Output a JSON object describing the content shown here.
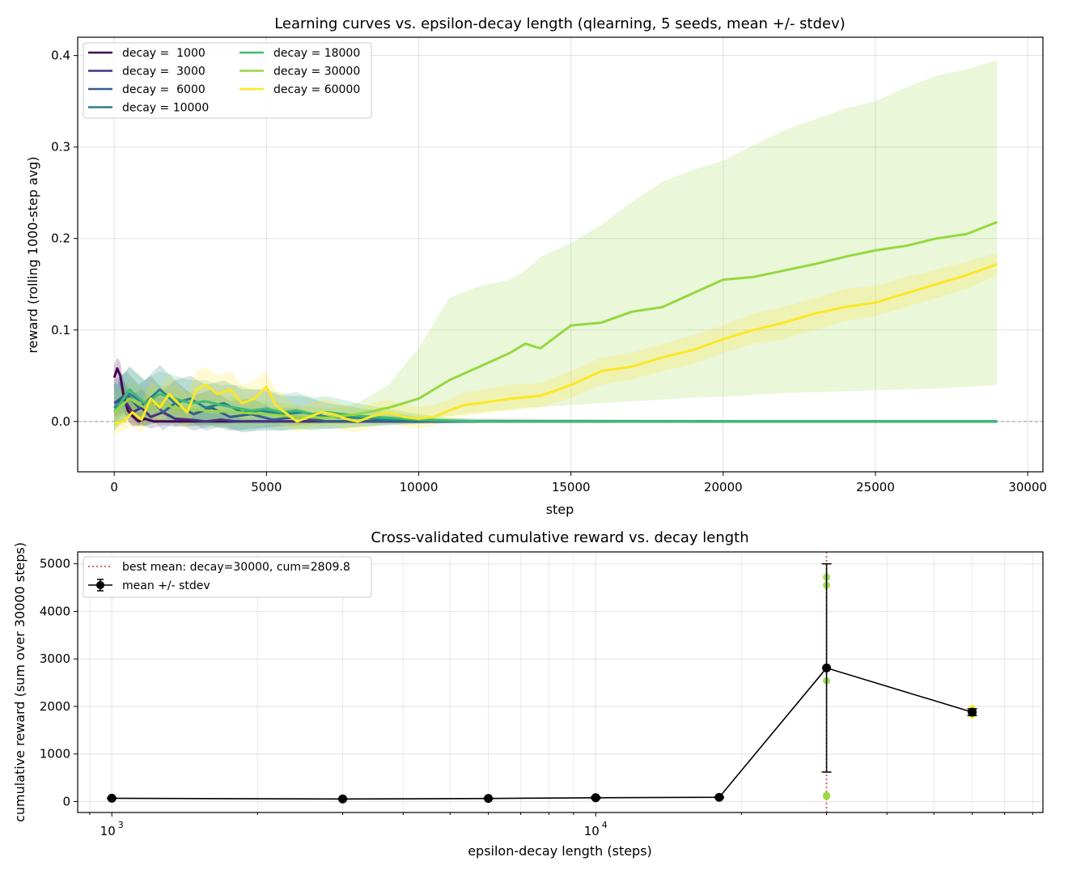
{
  "chart_data": [
    {
      "type": "line",
      "title": "Learning curves vs. epsilon-decay length (qlearning, 5 seeds, mean +/- stdev)",
      "xlabel": "step",
      "ylabel": "reward (rolling 1000-step avg)",
      "xlim": [
        -1200,
        30500
      ],
      "ylim": [
        -0.055,
        0.42
      ],
      "xticks": [
        0,
        5000,
        10000,
        15000,
        20000,
        25000,
        30000
      ],
      "xtick_labels": [
        "0",
        "5000",
        "10000",
        "15000",
        "20000",
        "25000",
        "30000"
      ],
      "yticks": [
        0.0,
        0.1,
        0.2,
        0.3,
        0.4
      ],
      "ytick_labels": [
        "0.0",
        "0.1",
        "0.2",
        "0.3",
        "0.4"
      ],
      "grid": true,
      "legend_position": "top-left",
      "zero_line": 0.0,
      "series": [
        {
          "name": "decay =  1000",
          "color": "#440154",
          "x": [
            0,
            100,
            200,
            300,
            450,
            600,
            800,
            1000,
            1300,
            2000,
            5000,
            29000
          ],
          "y": [
            0.048,
            0.058,
            0.05,
            0.03,
            0.012,
            0.006,
            0.0,
            0.003,
            0.0,
            0.0,
            0.0,
            0.0
          ],
          "band_lo": [
            0.035,
            0.045,
            0.035,
            0.015,
            0.0,
            -0.005,
            -0.005,
            -0.005,
            -0.002,
            0.0,
            0.0,
            0.0
          ],
          "band_hi": [
            0.062,
            0.07,
            0.065,
            0.045,
            0.028,
            0.02,
            0.01,
            0.012,
            0.004,
            0.0,
            0.0,
            0.0
          ]
        },
        {
          "name": "decay =  3000",
          "color": "#46327e",
          "x": [
            0,
            300,
            600,
            900,
            1200,
            1600,
            2000,
            2500,
            3000,
            3500,
            4000,
            5000,
            29000
          ],
          "y": [
            0.02,
            0.025,
            0.01,
            0.015,
            0.005,
            0.01,
            0.003,
            0.002,
            0.0,
            0.002,
            0.0,
            0.0,
            0.0
          ],
          "band_lo": [
            0.005,
            0.01,
            -0.005,
            -0.003,
            -0.008,
            -0.004,
            -0.006,
            -0.005,
            -0.004,
            -0.003,
            -0.002,
            0.0,
            0.0
          ],
          "band_hi": [
            0.04,
            0.045,
            0.03,
            0.035,
            0.025,
            0.028,
            0.015,
            0.012,
            0.01,
            0.008,
            0.005,
            0.0,
            0.0
          ]
        },
        {
          "name": "decay =  6000",
          "color": "#365c8d",
          "x": [
            0,
            400,
            800,
            1200,
            1600,
            2000,
            2600,
            3200,
            3800,
            4500,
            5200,
            6000,
            7000,
            29000
          ],
          "y": [
            0.02,
            0.03,
            0.015,
            0.025,
            0.01,
            0.02,
            0.008,
            0.015,
            0.005,
            0.008,
            0.002,
            0.005,
            0.0,
            0.0
          ],
          "band_lo": [
            0.0,
            0.01,
            -0.005,
            0.005,
            -0.01,
            0.0,
            -0.01,
            -0.005,
            -0.01,
            -0.008,
            -0.006,
            -0.004,
            -0.002,
            0.0
          ],
          "band_hi": [
            0.045,
            0.055,
            0.04,
            0.05,
            0.035,
            0.045,
            0.028,
            0.035,
            0.022,
            0.025,
            0.015,
            0.015,
            0.004,
            0.0
          ]
        },
        {
          "name": "decay = 10000",
          "color": "#277f8e",
          "x": [
            0,
            500,
            1000,
            1500,
            2000,
            2500,
            3000,
            3600,
            4200,
            4800,
            5500,
            6200,
            7000,
            8000,
            9000,
            10000,
            11000,
            29000
          ],
          "y": [
            0.015,
            0.03,
            0.02,
            0.035,
            0.02,
            0.025,
            0.015,
            0.02,
            0.01,
            0.012,
            0.008,
            0.01,
            0.005,
            0.004,
            0.002,
            0.001,
            0.0,
            0.0
          ],
          "band_lo": [
            -0.005,
            0.005,
            -0.005,
            0.01,
            -0.005,
            0.0,
            -0.01,
            -0.005,
            -0.012,
            -0.01,
            -0.01,
            -0.008,
            -0.008,
            -0.006,
            -0.004,
            -0.002,
            -0.001,
            0.0
          ],
          "band_hi": [
            0.04,
            0.06,
            0.045,
            0.062,
            0.045,
            0.05,
            0.04,
            0.045,
            0.035,
            0.035,
            0.028,
            0.028,
            0.02,
            0.015,
            0.01,
            0.005,
            0.002,
            0.0
          ]
        },
        {
          "name": "decay = 18000",
          "color": "#3fbc73",
          "x": [
            0,
            500,
            1000,
            1500,
            2000,
            2500,
            3000,
            3500,
            4000,
            4500,
            5000,
            5500,
            6000,
            6500,
            7000,
            7500,
            8000,
            9000,
            10000,
            11000,
            12000,
            29000
          ],
          "y": [
            0.01,
            0.035,
            0.02,
            0.03,
            0.025,
            0.02,
            0.022,
            0.018,
            0.015,
            0.012,
            0.014,
            0.01,
            0.012,
            0.008,
            0.01,
            0.008,
            0.006,
            0.004,
            0.002,
            0.001,
            0.0,
            0.0
          ],
          "band_lo": [
            -0.01,
            0.01,
            -0.005,
            0.005,
            0.0,
            -0.005,
            -0.003,
            -0.006,
            -0.01,
            -0.01,
            -0.008,
            -0.01,
            -0.008,
            -0.01,
            -0.008,
            -0.008,
            -0.006,
            -0.004,
            -0.003,
            -0.002,
            -0.001,
            0.0
          ],
          "band_hi": [
            0.035,
            0.06,
            0.045,
            0.055,
            0.05,
            0.045,
            0.045,
            0.04,
            0.04,
            0.035,
            0.035,
            0.03,
            0.032,
            0.026,
            0.028,
            0.024,
            0.02,
            0.014,
            0.008,
            0.004,
            0.002,
            0.0
          ]
        },
        {
          "name": "decay = 30000",
          "color": "#95d840",
          "x": [
            0,
            500,
            1000,
            1500,
            2000,
            3000,
            4000,
            5000,
            6000,
            7000,
            8000,
            9000,
            10000,
            11000,
            12000,
            13000,
            13500,
            14000,
            15000,
            16000,
            17000,
            18000,
            19000,
            20000,
            21000,
            22000,
            23000,
            24000,
            25000,
            26000,
            27000,
            28000,
            29000
          ],
          "y": [
            0.01,
            0.025,
            0.015,
            0.02,
            0.015,
            0.012,
            0.01,
            0.008,
            0.005,
            0.004,
            0.008,
            0.015,
            0.025,
            0.045,
            0.06,
            0.075,
            0.085,
            0.08,
            0.105,
            0.108,
            0.12,
            0.125,
            0.14,
            0.155,
            0.158,
            0.165,
            0.172,
            0.18,
            0.187,
            0.192,
            0.2,
            0.205,
            0.218
          ],
          "band_lo": [
            -0.01,
            0.005,
            -0.005,
            0.0,
            -0.005,
            -0.005,
            -0.006,
            -0.006,
            -0.006,
            -0.005,
            -0.003,
            0.0,
            0.003,
            0.006,
            0.01,
            0.013,
            0.015,
            0.016,
            0.018,
            0.02,
            0.022,
            0.024,
            0.026,
            0.027,
            0.029,
            0.031,
            0.032,
            0.033,
            0.034,
            0.035,
            0.036,
            0.038,
            0.04
          ],
          "band_hi": [
            0.03,
            0.045,
            0.035,
            0.04,
            0.035,
            0.03,
            0.026,
            0.022,
            0.018,
            0.014,
            0.02,
            0.04,
            0.08,
            0.135,
            0.148,
            0.155,
            0.165,
            0.18,
            0.195,
            0.215,
            0.24,
            0.262,
            0.275,
            0.285,
            0.302,
            0.318,
            0.33,
            0.342,
            0.35,
            0.365,
            0.378,
            0.385,
            0.395
          ]
        },
        {
          "name": "decay = 60000",
          "color": "#fde725",
          "x": [
            0,
            300,
            600,
            900,
            1200,
            1500,
            1800,
            2100,
            2400,
            2700,
            3000,
            3400,
            3800,
            4200,
            4600,
            5000,
            5300,
            5600,
            6000,
            6400,
            6800,
            7200,
            7600,
            8000,
            8500,
            9000,
            9500,
            10000,
            10500,
            11000,
            11500,
            12000,
            13000,
            14000,
            15000,
            16000,
            17000,
            18000,
            19000,
            20000,
            21000,
            22000,
            23000,
            24000,
            25000,
            26000,
            27000,
            28000,
            29000
          ],
          "y": [
            -0.002,
            0.0,
            0.01,
            0.002,
            0.025,
            0.015,
            0.03,
            0.02,
            0.01,
            0.035,
            0.04,
            0.03,
            0.035,
            0.02,
            0.025,
            0.038,
            0.018,
            0.01,
            0.0,
            0.005,
            0.01,
            0.008,
            0.003,
            0.0,
            0.006,
            0.01,
            0.005,
            0.003,
            0.005,
            0.012,
            0.018,
            0.02,
            0.025,
            0.028,
            0.04,
            0.055,
            0.06,
            0.07,
            0.078,
            0.09,
            0.1,
            0.108,
            0.118,
            0.125,
            0.13,
            0.14,
            0.15,
            0.16,
            0.172
          ],
          "band_lo": [
            -0.015,
            -0.01,
            -0.005,
            -0.012,
            0.005,
            -0.005,
            0.01,
            0.0,
            -0.008,
            0.015,
            0.02,
            0.01,
            0.015,
            0.0,
            0.005,
            0.02,
            0.0,
            -0.005,
            -0.012,
            -0.008,
            -0.004,
            -0.006,
            -0.01,
            -0.012,
            -0.006,
            -0.002,
            -0.006,
            -0.008,
            -0.005,
            0.002,
            0.006,
            0.008,
            0.012,
            0.015,
            0.026,
            0.04,
            0.046,
            0.055,
            0.063,
            0.075,
            0.085,
            0.09,
            0.1,
            0.11,
            0.115,
            0.125,
            0.135,
            0.145,
            0.16
          ],
          "band_hi": [
            0.012,
            0.015,
            0.025,
            0.02,
            0.045,
            0.035,
            0.05,
            0.04,
            0.03,
            0.055,
            0.06,
            0.05,
            0.055,
            0.04,
            0.045,
            0.055,
            0.035,
            0.028,
            0.015,
            0.02,
            0.025,
            0.022,
            0.018,
            0.014,
            0.02,
            0.024,
            0.018,
            0.016,
            0.018,
            0.024,
            0.032,
            0.034,
            0.04,
            0.042,
            0.055,
            0.07,
            0.075,
            0.085,
            0.094,
            0.105,
            0.118,
            0.125,
            0.135,
            0.145,
            0.148,
            0.158,
            0.166,
            0.175,
            0.184
          ]
        }
      ]
    },
    {
      "type": "scatter",
      "title": "Cross-validated cumulative reward vs. decay length",
      "xlabel": "epsilon-decay length (steps)",
      "ylabel": "cumulative reward (sum over 30000 steps)",
      "xscale": "log",
      "xlim": [
        850,
        84000
      ],
      "ylim": [
        -230,
        5250
      ],
      "xtick_labels": [
        "10",
        "10"
      ],
      "xtick_exponents": [
        "3",
        "4"
      ],
      "xticks": [
        1000,
        10000
      ],
      "yticks": [
        0,
        1000,
        2000,
        3000,
        4000,
        5000
      ],
      "ytick_labels": [
        "0",
        "1000",
        "2000",
        "3000",
        "4000",
        "5000"
      ],
      "grid": true,
      "legend_position": "top-left",
      "best_line": {
        "x": 30000,
        "label": "best mean: decay=30000, cum=2809.8",
        "color": "#e06666"
      },
      "mean_series": {
        "name": "mean +/- stdev",
        "color": "#000000",
        "x": [
          1000,
          3000,
          6000,
          10000,
          18000,
          30000,
          60000
        ],
        "mean": [
          70,
          55,
          65,
          80,
          90,
          2809.8,
          1880
        ],
        "stdev": [
          5,
          5,
          8,
          20,
          10,
          2190,
          70
        ]
      },
      "seed_points": [
        {
          "x": 1000,
          "y": [
            68,
            72,
            70,
            66,
            74
          ],
          "color": "#440154"
        },
        {
          "x": 3000,
          "y": [
            52,
            58,
            55,
            54,
            56
          ],
          "color": "#46327e"
        },
        {
          "x": 6000,
          "y": [
            60,
            70,
            64,
            66,
            65
          ],
          "color": "#365c8d"
        },
        {
          "x": 10000,
          "y": [
            60,
            100,
            75,
            85,
            80
          ],
          "color": "#277f8e"
        },
        {
          "x": 18000,
          "y": [
            85,
            95,
            90,
            88,
            92
          ],
          "color": "#3fbc73"
        },
        {
          "x": 30000,
          "y": [
            4720,
            4550,
            130,
            110,
            2540
          ],
          "color": "#95d840"
        },
        {
          "x": 60000,
          "y": [
            1960,
            1820,
            1870,
            1900,
            1850
          ],
          "color": "#fde725"
        }
      ]
    }
  ]
}
